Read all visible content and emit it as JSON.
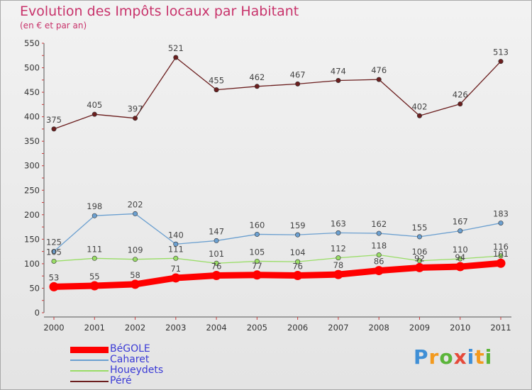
{
  "header": {
    "title": "Evolution des Impôts locaux par Habitant",
    "subtitle": "(en € et par an)"
  },
  "watermark": {
    "text": "Proxiti",
    "letter_colors": [
      "#3f8fd6",
      "#f39a1e",
      "#5bb53a",
      "#e54a3a",
      "#3f8fd6",
      "#f39a1e",
      "#5bb53a"
    ]
  },
  "chart_data": {
    "type": "line",
    "title": "Evolution des Impôts locaux par Habitant",
    "subtitle": "(en € et par an)",
    "xlabel": "",
    "ylabel": "",
    "ylim": [
      0,
      550
    ],
    "yticks": [
      0,
      50,
      100,
      150,
      200,
      250,
      300,
      350,
      400,
      450,
      500,
      550
    ],
    "grid": false,
    "legend_position": "bottom-left",
    "categories": [
      "2000",
      "2001",
      "2002",
      "2003",
      "2004",
      "2005",
      "2006",
      "2007",
      "2008",
      "2009",
      "2010",
      "2011"
    ],
    "series": [
      {
        "name": "BéGOLE",
        "color": "#ff0000",
        "values": [
          53,
          55,
          58,
          71,
          76,
          77,
          76,
          78,
          86,
          92,
          94,
          101
        ],
        "labels": [
          "53",
          "55",
          "58",
          "71",
          "76",
          "77",
          "76",
          "78",
          "86",
          "92",
          "94",
          "101"
        ]
      },
      {
        "name": "Caharet",
        "color": "#6ca0d0",
        "values": [
          125,
          198,
          202,
          140,
          147,
          160,
          159,
          163,
          162,
          155,
          167,
          183
        ],
        "labels": [
          "125",
          "198",
          "202",
          "140",
          "147",
          "160",
          "159",
          "163",
          "162",
          "155",
          "167",
          "183"
        ]
      },
      {
        "name": "Houeydets",
        "color": "#99dd66",
        "values": [
          105,
          111,
          109,
          111,
          101,
          105,
          104,
          112,
          118,
          106,
          110,
          116
        ],
        "labels": [
          "105",
          "111",
          "109",
          "111",
          "101",
          "105",
          "104",
          "112",
          "118",
          "106",
          "110",
          "116"
        ]
      },
      {
        "name": "Péré",
        "color": "#6b1e1e",
        "values": [
          375,
          405,
          397,
          521,
          455,
          462,
          467,
          474,
          476,
          402,
          426,
          513
        ],
        "labels": [
          "375",
          "405",
          "397",
          "521",
          "455",
          "462",
          "467",
          "474",
          "476",
          "402",
          "426",
          "513"
        ]
      }
    ]
  }
}
